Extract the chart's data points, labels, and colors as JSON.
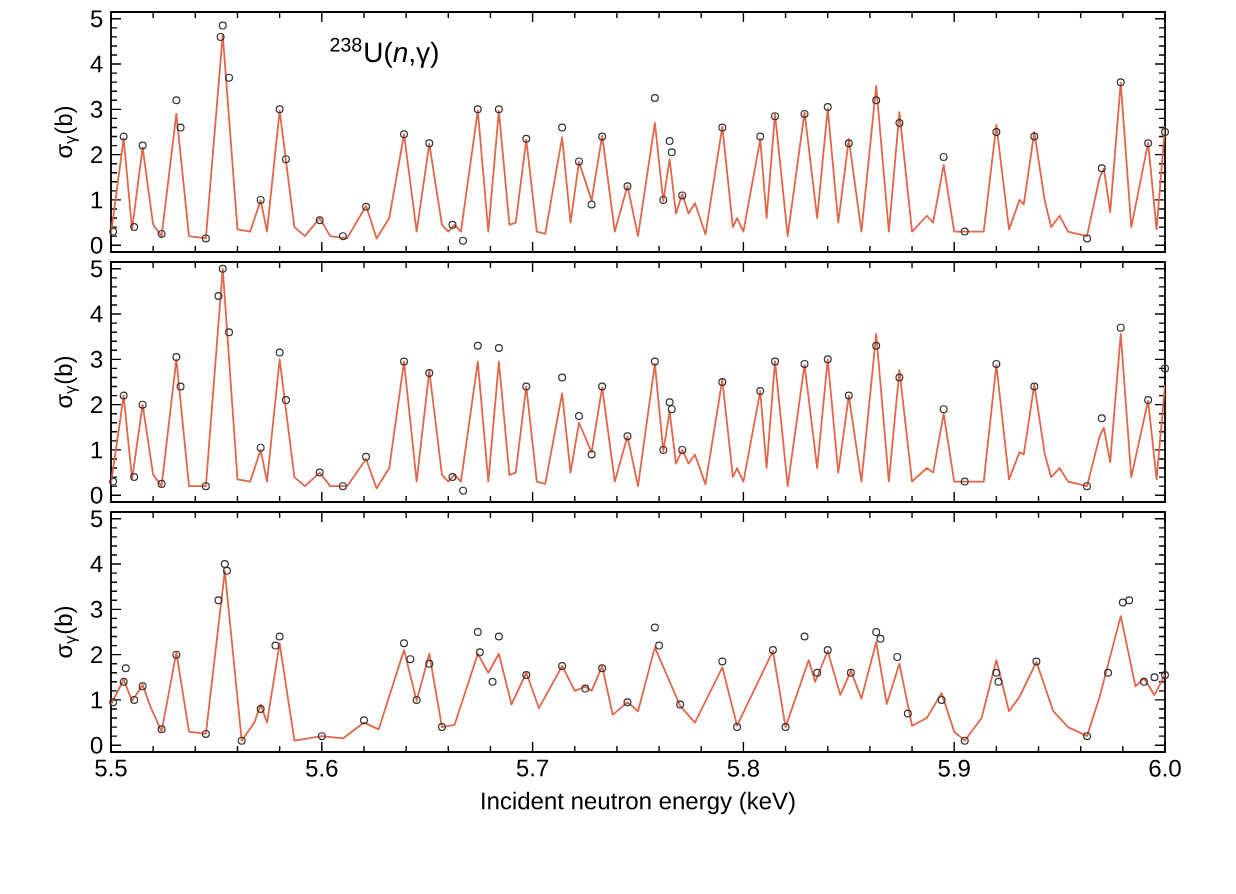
{
  "chart_data": [
    {
      "type": "line",
      "ylabel": "σ$_{γ}$(b)",
      "annotations": [
        "$^{238}$U(*n*,γ)"
      ],
      "xlim": [
        5.5,
        6.0
      ],
      "ylim": [
        -0.15,
        5.15
      ],
      "xticks": [
        5.5,
        5.6,
        5.7,
        5.8,
        5.9,
        6.0
      ],
      "yticks": [
        0,
        1,
        2,
        3,
        4,
        5
      ],
      "tick_labels": "y",
      "series": [
        {
          "type": "scatter",
          "color": "#333333",
          "marker": "circle",
          "x": [
            5.501,
            5.506,
            5.511,
            5.515,
            5.524,
            5.531,
            5.533,
            5.545,
            5.552,
            5.553,
            5.556,
            5.571,
            5.58,
            5.583,
            5.599,
            5.61,
            5.621,
            5.639,
            5.651,
            5.662,
            5.667,
            5.674,
            5.684,
            5.697,
            5.714,
            5.722,
            5.728,
            5.733,
            5.745,
            5.758,
            5.762,
            5.765,
            5.766,
            5.771,
            5.79,
            5.808,
            5.815,
            5.829,
            5.84,
            5.85,
            5.863,
            5.874,
            5.895,
            5.905,
            5.92,
            5.938,
            5.963,
            5.97,
            5.979,
            5.992,
            6.0
          ],
          "values": [
            0.3,
            2.4,
            0.4,
            2.2,
            0.25,
            3.2,
            2.6,
            0.15,
            4.6,
            4.85,
            3.7,
            1.0,
            3.0,
            1.9,
            0.55,
            0.2,
            0.85,
            2.45,
            2.25,
            0.45,
            0.1,
            3.0,
            3.0,
            2.35,
            2.6,
            1.85,
            0.9,
            2.4,
            1.3,
            3.25,
            1.0,
            2.3,
            2.05,
            1.1,
            2.6,
            2.4,
            2.85,
            2.9,
            3.05,
            2.25,
            3.2,
            2.7,
            1.95,
            0.3,
            2.5,
            2.4,
            0.15,
            1.7,
            3.6,
            2.25,
            2.5
          ]
        },
        {
          "color": "#e0674a",
          "line_style": "solid",
          "x": [
            5.5,
            5.506,
            5.51,
            5.515,
            5.52,
            5.524,
            5.531,
            5.537,
            5.545,
            5.553,
            5.56,
            5.566,
            5.571,
            5.574,
            5.58,
            5.587,
            5.592,
            5.599,
            5.604,
            5.612,
            5.621,
            5.626,
            5.632,
            5.639,
            5.645,
            5.651,
            5.657,
            5.66,
            5.663,
            5.666,
            5.674,
            5.679,
            5.684,
            5.689,
            5.692,
            5.697,
            5.702,
            5.706,
            5.714,
            5.718,
            5.722,
            5.728,
            5.733,
            5.739,
            5.745,
            5.75,
            5.758,
            5.762,
            5.765,
            5.768,
            5.771,
            5.774,
            5.777,
            5.782,
            5.79,
            5.795,
            5.797,
            5.8,
            5.808,
            5.811,
            5.815,
            5.821,
            5.829,
            5.835,
            5.84,
            5.845,
            5.85,
            5.856,
            5.863,
            5.869,
            5.874,
            5.88,
            5.887,
            5.89,
            5.895,
            5.9,
            5.91,
            5.914,
            5.92,
            5.926,
            5.931,
            5.933,
            5.938,
            5.943,
            5.946,
            5.95,
            5.954,
            5.963,
            5.969,
            5.971,
            5.974,
            5.979,
            5.984,
            5.992,
            5.996,
            6.0
          ],
          "values": [
            0.25,
            2.36,
            0.35,
            2.16,
            0.45,
            0.2,
            2.9,
            0.2,
            0.15,
            4.65,
            0.35,
            0.3,
            0.99,
            0.3,
            2.97,
            0.4,
            0.2,
            0.6,
            0.2,
            0.15,
            0.87,
            0.15,
            0.6,
            2.45,
            0.3,
            2.24,
            0.45,
            0.3,
            0.45,
            0.3,
            2.97,
            0.3,
            2.97,
            0.45,
            0.5,
            2.33,
            0.3,
            0.25,
            2.38,
            0.5,
            1.84,
            0.99,
            2.42,
            0.3,
            1.31,
            0.2,
            2.7,
            0.97,
            1.9,
            0.7,
            1.13,
            0.7,
            0.93,
            0.24,
            2.62,
            0.4,
            0.6,
            0.3,
            2.34,
            0.6,
            2.9,
            0.2,
            2.94,
            0.6,
            3.02,
            0.5,
            2.34,
            0.3,
            3.52,
            0.3,
            2.94,
            0.3,
            0.65,
            0.5,
            1.77,
            0.3,
            0.3,
            0.3,
            2.66,
            0.35,
            1.0,
            0.9,
            2.5,
            0.97,
            0.4,
            0.65,
            0.3,
            0.2,
            1.5,
            1.69,
            0.73,
            3.59,
            0.4,
            2.26,
            0.35,
            2.62
          ]
        }
      ]
    },
    {
      "type": "line",
      "ylabel": "σ$_{γ}$(b)",
      "xlim": [
        5.5,
        6.0
      ],
      "ylim": [
        -0.15,
        5.15
      ],
      "xticks": [
        5.5,
        5.6,
        5.7,
        5.8,
        5.9,
        6.0
      ],
      "yticks": [
        0,
        1,
        2,
        3,
        4,
        5
      ],
      "tick_labels": "y",
      "series": [
        {
          "type": "scatter",
          "color": "#333333",
          "marker": "circle",
          "x": [
            5.501,
            5.506,
            5.511,
            5.515,
            5.524,
            5.531,
            5.533,
            5.545,
            5.551,
            5.553,
            5.556,
            5.571,
            5.58,
            5.583,
            5.599,
            5.61,
            5.621,
            5.639,
            5.651,
            5.662,
            5.667,
            5.674,
            5.684,
            5.697,
            5.714,
            5.722,
            5.728,
            5.733,
            5.745,
            5.758,
            5.762,
            5.765,
            5.766,
            5.771,
            5.79,
            5.808,
            5.815,
            5.829,
            5.84,
            5.85,
            5.863,
            5.874,
            5.895,
            5.905,
            5.92,
            5.938,
            5.963,
            5.97,
            5.979,
            5.992,
            6.0
          ],
          "values": [
            0.3,
            2.2,
            0.4,
            2.0,
            0.25,
            3.05,
            2.4,
            0.2,
            4.4,
            5.0,
            3.6,
            1.05,
            3.15,
            2.1,
            0.5,
            0.2,
            0.85,
            2.95,
            2.7,
            0.4,
            0.1,
            3.3,
            3.25,
            2.4,
            2.6,
            1.75,
            0.9,
            2.4,
            1.3,
            2.95,
            1.0,
            2.05,
            1.9,
            1.0,
            2.5,
            2.3,
            2.95,
            2.9,
            3.0,
            2.2,
            3.3,
            2.6,
            1.9,
            0.3,
            2.9,
            2.4,
            0.2,
            1.7,
            3.7,
            2.1,
            2.8
          ]
        },
        {
          "color": "#e0674a",
          "line_style": "solid",
          "x": [
            5.5,
            5.506,
            5.51,
            5.515,
            5.52,
            5.524,
            5.531,
            5.537,
            5.545,
            5.553,
            5.56,
            5.566,
            5.571,
            5.574,
            5.58,
            5.587,
            5.592,
            5.599,
            5.604,
            5.612,
            5.621,
            5.626,
            5.632,
            5.639,
            5.645,
            5.651,
            5.657,
            5.66,
            5.663,
            5.666,
            5.674,
            5.679,
            5.684,
            5.689,
            5.692,
            5.697,
            5.702,
            5.706,
            5.714,
            5.718,
            5.722,
            5.728,
            5.733,
            5.739,
            5.745,
            5.75,
            5.758,
            5.762,
            5.765,
            5.768,
            5.771,
            5.774,
            5.777,
            5.782,
            5.79,
            5.795,
            5.797,
            5.8,
            5.808,
            5.811,
            5.815,
            5.821,
            5.829,
            5.835,
            5.84,
            5.845,
            5.85,
            5.856,
            5.863,
            5.869,
            5.874,
            5.88,
            5.887,
            5.89,
            5.895,
            5.9,
            5.91,
            5.914,
            5.92,
            5.926,
            5.931,
            5.933,
            5.938,
            5.943,
            5.946,
            5.95,
            5.954,
            5.963,
            5.969,
            5.971,
            5.974,
            5.979,
            5.984,
            5.992,
            5.996,
            6.0
          ],
          "values": [
            0.25,
            2.2,
            0.35,
            2.0,
            0.45,
            0.2,
            3.0,
            0.2,
            0.2,
            5.0,
            0.35,
            0.3,
            1.0,
            0.3,
            3.0,
            0.4,
            0.2,
            0.5,
            0.2,
            0.2,
            0.8,
            0.15,
            0.6,
            2.95,
            0.3,
            2.75,
            0.45,
            0.3,
            0.45,
            0.3,
            2.95,
            0.3,
            2.95,
            0.45,
            0.5,
            2.4,
            0.3,
            0.25,
            2.25,
            0.5,
            1.6,
            0.95,
            2.38,
            0.3,
            1.3,
            0.2,
            2.9,
            0.97,
            1.85,
            0.7,
            1.0,
            0.7,
            0.9,
            0.24,
            2.55,
            0.4,
            0.6,
            0.3,
            2.3,
            0.6,
            2.96,
            0.2,
            2.88,
            0.6,
            3.0,
            0.5,
            2.2,
            0.3,
            3.56,
            0.3,
            2.76,
            0.3,
            0.6,
            0.5,
            1.8,
            0.3,
            0.3,
            0.3,
            2.88,
            0.35,
            0.95,
            0.9,
            2.44,
            0.9,
            0.4,
            0.6,
            0.3,
            0.2,
            1.3,
            1.49,
            0.73,
            3.56,
            0.4,
            2.09,
            0.35,
            2.44
          ]
        }
      ]
    },
    {
      "type": "line",
      "xlabel": "Incident neutron energy (keV)",
      "ylabel": "σ$_{γ}$(b)",
      "xlim": [
        5.5,
        6.0
      ],
      "ylim": [
        -0.15,
        5.15
      ],
      "xticks": [
        5.5,
        5.6,
        5.7,
        5.8,
        5.9,
        {
          "value": 6.0,
          "label": "6.0"
        }
      ],
      "yticks": [
        0,
        1,
        2,
        3,
        4,
        5
      ],
      "series": [
        {
          "type": "scatter",
          "color": "#333333",
          "marker": "circle",
          "x": [
            5.501,
            5.506,
            5.507,
            5.511,
            5.515,
            5.524,
            5.531,
            5.545,
            5.551,
            5.554,
            5.555,
            5.562,
            5.571,
            5.578,
            5.58,
            5.6,
            5.62,
            5.639,
            5.642,
            5.645,
            5.651,
            5.657,
            5.674,
            5.675,
            5.681,
            5.684,
            5.697,
            5.714,
            5.725,
            5.733,
            5.745,
            5.758,
            5.76,
            5.77,
            5.79,
            5.797,
            5.814,
            5.82,
            5.829,
            5.835,
            5.84,
            5.851,
            5.863,
            5.865,
            5.873,
            5.878,
            5.894,
            5.905,
            5.92,
            5.921,
            5.939,
            5.963,
            5.973,
            5.98,
            5.983,
            5.99,
            5.995,
            6.0
          ],
          "values": [
            0.95,
            1.4,
            1.7,
            1.0,
            1.3,
            0.35,
            2.0,
            0.25,
            3.2,
            4.0,
            3.85,
            0.1,
            0.8,
            2.2,
            2.4,
            0.2,
            0.55,
            2.25,
            1.9,
            1.0,
            1.8,
            0.4,
            2.5,
            2.05,
            1.4,
            2.4,
            1.55,
            1.75,
            1.25,
            1.7,
            0.95,
            2.6,
            2.2,
            0.9,
            1.85,
            0.4,
            2.1,
            0.4,
            2.4,
            1.6,
            2.1,
            1.6,
            2.5,
            2.35,
            1.95,
            0.7,
            1.0,
            0.1,
            1.6,
            1.4,
            1.85,
            0.2,
            1.6,
            3.15,
            3.2,
            1.4,
            1.5,
            1.55
          ]
        },
        {
          "color": "#e0674a",
          "line_style": "solid",
          "x": [
            5.5,
            5.506,
            5.51,
            5.515,
            5.519,
            5.524,
            5.531,
            5.537,
            5.545,
            5.554,
            5.562,
            5.568,
            5.571,
            5.574,
            5.58,
            5.587,
            5.6,
            5.61,
            5.62,
            5.627,
            5.639,
            5.645,
            5.651,
            5.657,
            5.663,
            5.674,
            5.679,
            5.684,
            5.69,
            5.697,
            5.703,
            5.714,
            5.72,
            5.725,
            5.728,
            5.733,
            5.738,
            5.745,
            5.75,
            5.758,
            5.77,
            5.777,
            5.79,
            5.797,
            5.814,
            5.82,
            5.831,
            5.834,
            5.84,
            5.846,
            5.851,
            5.856,
            5.863,
            5.868,
            5.874,
            5.88,
            5.887,
            5.894,
            5.9,
            5.905,
            5.913,
            5.92,
            5.926,
            5.931,
            5.939,
            5.947,
            5.954,
            5.963,
            5.969,
            5.979,
            5.986,
            5.99,
            5.995,
            6.0
          ],
          "values": [
            0.9,
            1.45,
            0.98,
            1.33,
            0.82,
            0.3,
            2.05,
            0.3,
            0.25,
            3.85,
            0.1,
            0.5,
            0.9,
            0.5,
            2.25,
            0.1,
            0.2,
            0.15,
            0.5,
            0.35,
            2.1,
            0.98,
            2.02,
            0.4,
            0.45,
            2.02,
            1.6,
            2.02,
            0.9,
            1.6,
            0.82,
            1.75,
            1.2,
            1.29,
            1.2,
            1.75,
            0.67,
            0.95,
            0.75,
            2.16,
            0.87,
            0.5,
            1.72,
            0.43,
            2.08,
            0.4,
            1.88,
            1.4,
            2.08,
            1.11,
            1.64,
            1.03,
            2.28,
            0.91,
            1.8,
            0.43,
            0.6,
            1.15,
            0.3,
            0.1,
            0.6,
            1.88,
            0.75,
            1.07,
            1.84,
            0.75,
            0.4,
            0.2,
            1.07,
            2.85,
            1.3,
            1.48,
            1.11,
            1.56
          ]
        }
      ]
    }
  ]
}
